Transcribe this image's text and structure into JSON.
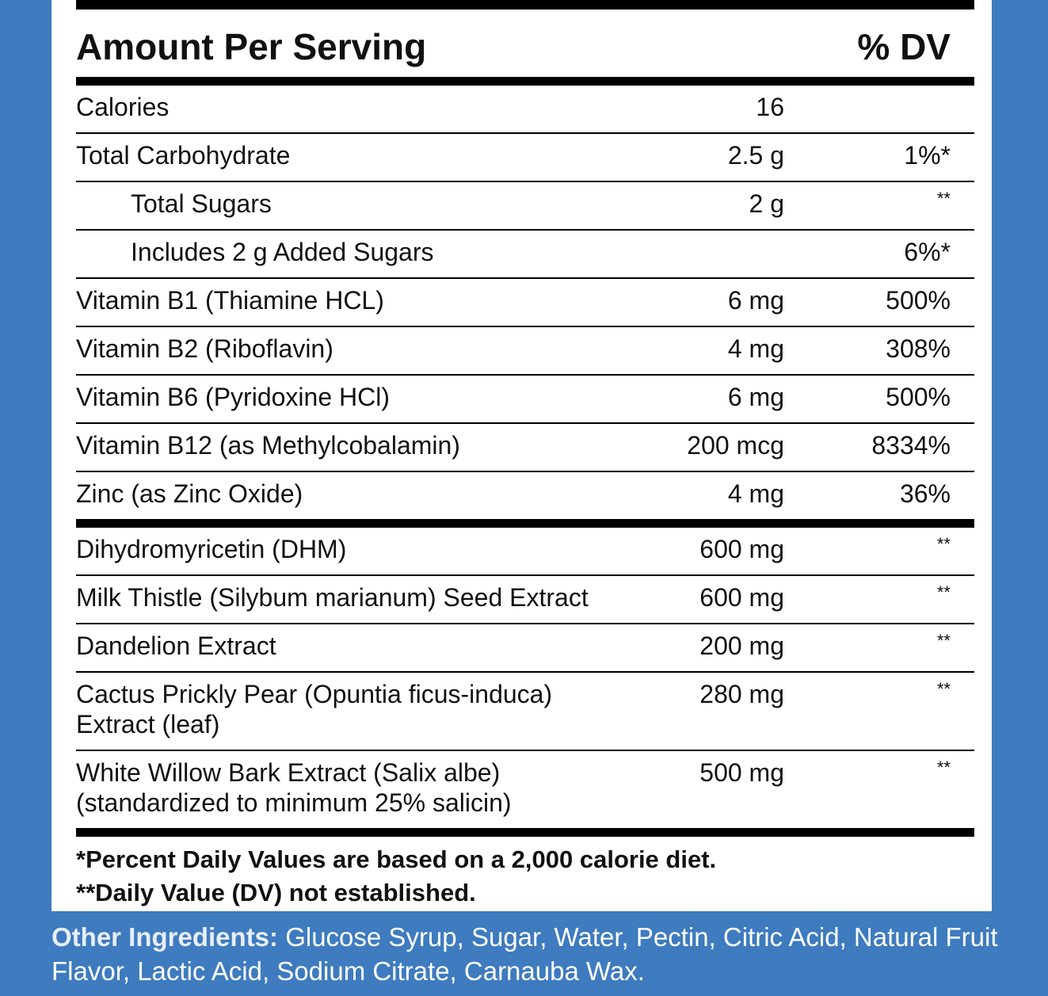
{
  "header": {
    "left": "Amount Per Serving",
    "right": "% DV"
  },
  "nutrients": [
    {
      "name": "Calories",
      "amount": "16"
    },
    {
      "name": "Total Carbohydrate",
      "amount": "2.5 g",
      "dv": "1%*"
    },
    {
      "name": "Total Sugars",
      "amount": "2 g",
      "dv": "**",
      "indent": true
    },
    {
      "name": "Includes 2 g Added Sugars",
      "dv": "6%*",
      "indent": true
    },
    {
      "name": "Vitamin B1 (Thiamine HCL)",
      "amount": "6 mg",
      "dv": "500%"
    },
    {
      "name": "Vitamin B2 (Riboflavin)",
      "amount": "4 mg",
      "dv": "308%"
    },
    {
      "name": "Vitamin B6 (Pyridoxine HCl)",
      "amount": "6 mg",
      "dv": "500%"
    },
    {
      "name": "Vitamin B12 (as Methylcobalamin)",
      "amount": "200 mcg",
      "dv": "8334%"
    },
    {
      "name": "Zinc (as Zinc Oxide)",
      "amount": "4 mg",
      "dv": "36%"
    }
  ],
  "ingredients": [
    {
      "name": "Dihydromyricetin (DHM)",
      "amount": "600 mg",
      "dv": "**"
    },
    {
      "name": "Milk Thistle (Silybum marianum) Seed Extract",
      "amount": "600 mg",
      "dv": "**"
    },
    {
      "name": "Dandelion Extract",
      "amount": "200 mg",
      "dv": "**"
    },
    {
      "name": [
        "Cactus Prickly Pear (Opuntia ficus-induca)",
        "Extract (leaf)"
      ],
      "amount": "280 mg",
      "dv": "**"
    },
    {
      "name": [
        "White Willow Bark Extract (Salix albe)",
        "(standardized to minimum 25% salicin)"
      ],
      "amount": "500 mg",
      "dv": "**"
    }
  ],
  "footnotes": [
    "*Percent Daily Values are based on a 2,000 calorie diet.",
    "**Daily Value (DV) not established."
  ],
  "other_ingredients": {
    "label": "Other Ingredients:",
    "text": "Glucose Syrup, Sugar,  Water, Pectin, Citric Acid, Natural Fruit Flavor,  Lactic Acid, Sodium Citrate, Carnauba Wax."
  }
}
